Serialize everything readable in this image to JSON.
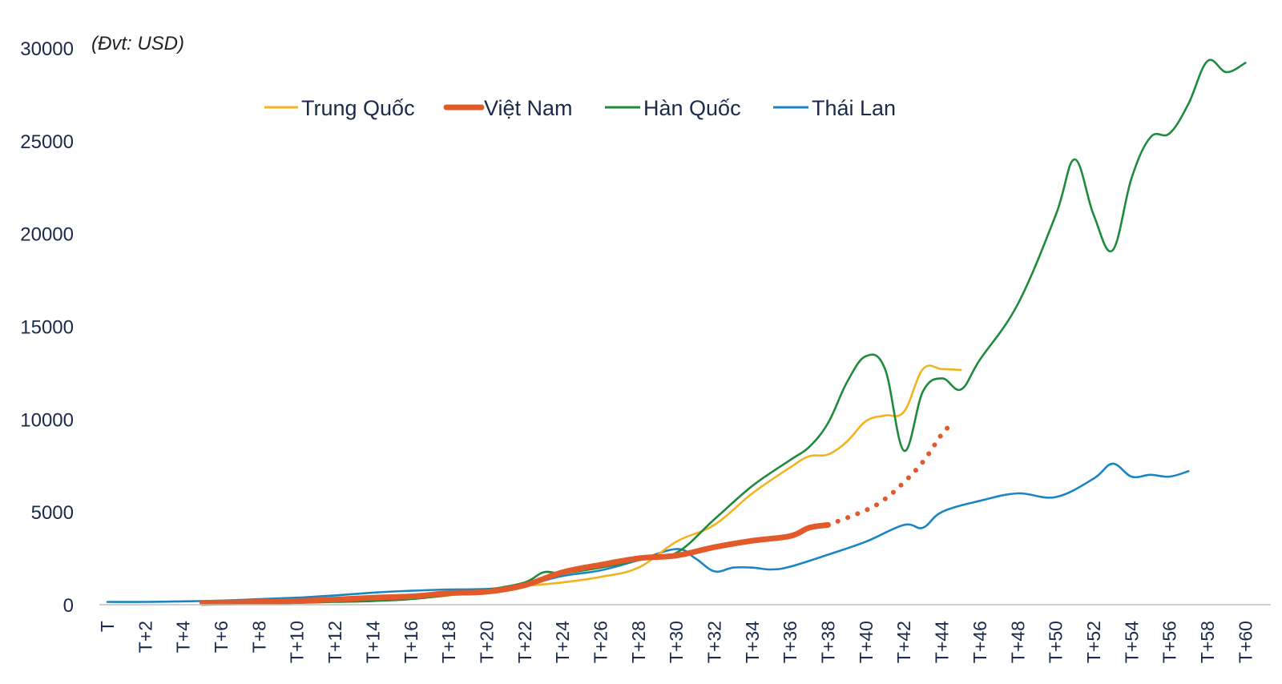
{
  "chart_data": {
    "type": "line",
    "unit_label": "(Đvt: USD)",
    "ylim": [
      0,
      30000
    ],
    "yticks": [
      0,
      5000,
      10000,
      15000,
      20000,
      25000,
      30000
    ],
    "x_range": [
      0,
      61
    ],
    "x_ticks": [
      {
        "x": 0,
        "label": "T"
      },
      {
        "x": 2,
        "label": "T+2"
      },
      {
        "x": 4,
        "label": "T+4"
      },
      {
        "x": 6,
        "label": "T+6"
      },
      {
        "x": 8,
        "label": "T+8"
      },
      {
        "x": 10,
        "label": "T+10"
      },
      {
        "x": 12,
        "label": "T+12"
      },
      {
        "x": 14,
        "label": "T+14"
      },
      {
        "x": 16,
        "label": "T+16"
      },
      {
        "x": 18,
        "label": "T+18"
      },
      {
        "x": 20,
        "label": "T+20"
      },
      {
        "x": 22,
        "label": "T+22"
      },
      {
        "x": 24,
        "label": "T+24"
      },
      {
        "x": 26,
        "label": "T+26"
      },
      {
        "x": 28,
        "label": "T+28"
      },
      {
        "x": 30,
        "label": "T+30"
      },
      {
        "x": 32,
        "label": "T+32"
      },
      {
        "x": 34,
        "label": "T+34"
      },
      {
        "x": 36,
        "label": "T+36"
      },
      {
        "x": 38,
        "label": "T+38"
      },
      {
        "x": 40,
        "label": "T+40"
      },
      {
        "x": 42,
        "label": "T+42"
      },
      {
        "x": 44,
        "label": "T+44"
      },
      {
        "x": 46,
        "label": "T+46"
      },
      {
        "x": 48,
        "label": "T+48"
      },
      {
        "x": 50,
        "label": "T+50"
      },
      {
        "x": 52,
        "label": "T+52"
      },
      {
        "x": 54,
        "label": "T+54"
      },
      {
        "x": 56,
        "label": "T+56"
      },
      {
        "x": 58,
        "label": "T+58"
      },
      {
        "x": 60,
        "label": "T+60"
      }
    ],
    "legend_position": "top",
    "series": [
      {
        "name": "Trung Quốc",
        "color": "#f2b31e",
        "style": "solid",
        "points": [
          [
            5,
            100
          ],
          [
            8,
            130
          ],
          [
            10,
            160
          ],
          [
            12,
            200
          ],
          [
            14,
            260
          ],
          [
            16,
            330
          ],
          [
            18,
            500
          ],
          [
            20,
            750
          ],
          [
            22,
            1000
          ],
          [
            24,
            1200
          ],
          [
            26,
            1500
          ],
          [
            28,
            2000
          ],
          [
            30,
            3400
          ],
          [
            32,
            4300
          ],
          [
            34,
            6000
          ],
          [
            36,
            7400
          ],
          [
            37,
            8000
          ],
          [
            38,
            8100
          ],
          [
            39,
            8800
          ],
          [
            40,
            9900
          ],
          [
            41,
            10200
          ],
          [
            42,
            10400
          ],
          [
            43,
            12700
          ],
          [
            44,
            12700
          ],
          [
            45,
            12650
          ]
        ]
      },
      {
        "name": "Việt Nam",
        "color": "#e2592a",
        "style": "thick",
        "points": [
          [
            5,
            100
          ],
          [
            8,
            150
          ],
          [
            10,
            200
          ],
          [
            12,
            280
          ],
          [
            14,
            380
          ],
          [
            16,
            450
          ],
          [
            18,
            620
          ],
          [
            20,
            700
          ],
          [
            22,
            1050
          ],
          [
            24,
            1750
          ],
          [
            26,
            2150
          ],
          [
            28,
            2500
          ],
          [
            30,
            2650
          ],
          [
            32,
            3100
          ],
          [
            34,
            3450
          ],
          [
            36,
            3700
          ],
          [
            37,
            4150
          ],
          [
            38,
            4300
          ]
        ]
      },
      {
        "name": "",
        "color": "#e2592a",
        "style": "dotted",
        "points": [
          [
            38,
            4300
          ],
          [
            40,
            5100
          ],
          [
            41,
            5700
          ],
          [
            42,
            6600
          ],
          [
            43,
            7700
          ],
          [
            44,
            9200
          ],
          [
            44.5,
            9700
          ]
        ]
      },
      {
        "name": "Hàn Quốc",
        "color": "#1f8a3b",
        "style": "solid",
        "points": [
          [
            5,
            0
          ],
          [
            8,
            50
          ],
          [
            10,
            100
          ],
          [
            12,
            150
          ],
          [
            14,
            200
          ],
          [
            16,
            300
          ],
          [
            18,
            520
          ],
          [
            20,
            800
          ],
          [
            22,
            1200
          ],
          [
            23,
            1750
          ],
          [
            24,
            1700
          ],
          [
            26,
            2000
          ],
          [
            28,
            2400
          ],
          [
            30,
            2800
          ],
          [
            32,
            4600
          ],
          [
            34,
            6400
          ],
          [
            36,
            7800
          ],
          [
            37,
            8500
          ],
          [
            38,
            9800
          ],
          [
            39,
            12000
          ],
          [
            40,
            13400
          ],
          [
            41,
            12700
          ],
          [
            42,
            8300
          ],
          [
            43,
            11500
          ],
          [
            44,
            12200
          ],
          [
            45,
            11600
          ],
          [
            46,
            13200
          ],
          [
            48,
            16200
          ],
          [
            50,
            21000
          ],
          [
            51,
            24000
          ],
          [
            52,
            21000
          ],
          [
            53,
            19100
          ],
          [
            54,
            23000
          ],
          [
            55,
            25200
          ],
          [
            56,
            25400
          ],
          [
            57,
            27000
          ],
          [
            58,
            29300
          ],
          [
            59,
            28700
          ],
          [
            60,
            29200
          ]
        ]
      },
      {
        "name": "Thái Lan",
        "color": "#1b85c2",
        "style": "solid",
        "points": [
          [
            0,
            150
          ],
          [
            2,
            150
          ],
          [
            4,
            180
          ],
          [
            6,
            220
          ],
          [
            8,
            300
          ],
          [
            10,
            380
          ],
          [
            12,
            500
          ],
          [
            14,
            650
          ],
          [
            16,
            750
          ],
          [
            18,
            820
          ],
          [
            20,
            850
          ],
          [
            22,
            1050
          ],
          [
            24,
            1550
          ],
          [
            26,
            1850
          ],
          [
            28,
            2400
          ],
          [
            30,
            3000
          ],
          [
            31,
            2500
          ],
          [
            32,
            1800
          ],
          [
            33,
            2000
          ],
          [
            34,
            2000
          ],
          [
            35,
            1900
          ],
          [
            36,
            2050
          ],
          [
            38,
            2700
          ],
          [
            40,
            3400
          ],
          [
            42,
            4300
          ],
          [
            43,
            4150
          ],
          [
            44,
            5000
          ],
          [
            46,
            5600
          ],
          [
            48,
            6000
          ],
          [
            50,
            5800
          ],
          [
            52,
            6800
          ],
          [
            53,
            7600
          ],
          [
            54,
            6900
          ],
          [
            55,
            7000
          ],
          [
            56,
            6900
          ],
          [
            57,
            7200
          ]
        ]
      }
    ]
  }
}
